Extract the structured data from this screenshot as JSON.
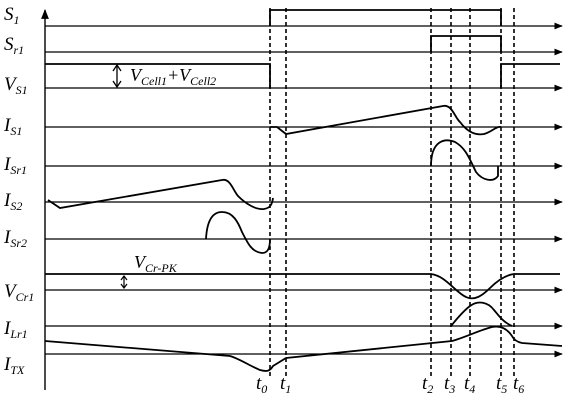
{
  "signals": [
    {
      "main": "S",
      "sub": "1"
    },
    {
      "main": "S",
      "sub": "r1"
    },
    {
      "main": "V",
      "sub": "S1"
    },
    {
      "main": "I",
      "sub": "S1"
    },
    {
      "main": "I",
      "sub": "Sr1"
    },
    {
      "main": "I",
      "sub": "S2"
    },
    {
      "main": "I",
      "sub": "Sr2"
    },
    {
      "main": "V",
      "sub": "Cr1"
    },
    {
      "main": "I",
      "sub": "Lr1"
    },
    {
      "main": "I",
      "sub": "TX"
    }
  ],
  "time_markers": [
    {
      "main": "t",
      "sub": "0"
    },
    {
      "main": "t",
      "sub": "1"
    },
    {
      "main": "t",
      "sub": "2"
    },
    {
      "main": "t",
      "sub": "3"
    },
    {
      "main": "t",
      "sub": "4"
    },
    {
      "main": "t",
      "sub": "5"
    },
    {
      "main": "t",
      "sub": "6"
    }
  ],
  "annotations": {
    "vcell": {
      "v1": "V",
      "s1": "Cell1",
      "plus": "+",
      "v2": "V",
      "s2": "Cell2"
    },
    "vcr_pk": {
      "v": "V",
      "s": "Cr-PK"
    }
  }
}
